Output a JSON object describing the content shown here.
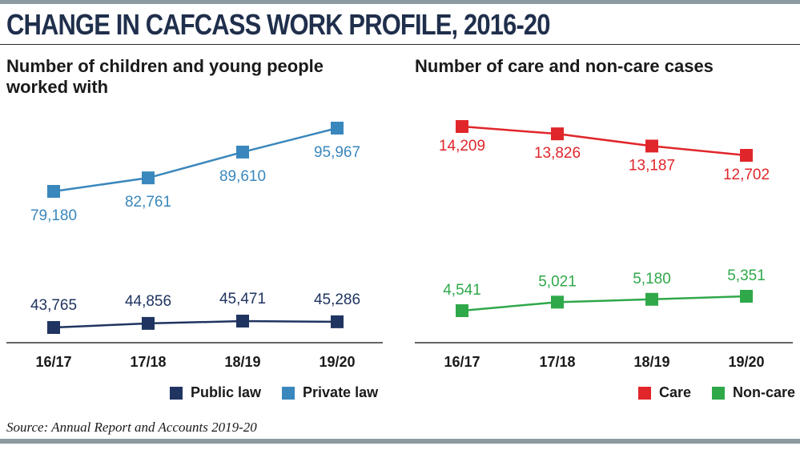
{
  "title": "CHANGE IN CAFCASS WORK PROFILE, 2016-20",
  "source": "Source: Annual Report and Accounts 2019-20",
  "colors": {
    "public": "#1f3460",
    "private": "#3a87bd",
    "care": "#e0262b",
    "noncare": "#2fa84a",
    "axis": "#333333"
  },
  "chart_data": [
    {
      "type": "line",
      "title": "Number of children and young people worked with",
      "categories": [
        "16/17",
        "17/18",
        "18/19",
        "19/20"
      ],
      "legend": "bottom-right",
      "grid": false,
      "series": [
        {
          "name": "Public law",
          "values": [
            43765,
            44856,
            45471,
            45286
          ],
          "labels": [
            "43,765",
            "44,856",
            "45,471",
            "45,286"
          ],
          "color": "#1f3460"
        },
        {
          "name": "Private law",
          "values": [
            79180,
            82761,
            89610,
            95967
          ],
          "labels": [
            "79,180",
            "82,761",
            "89,610",
            "95,967"
          ],
          "color": "#3a87bd"
        }
      ]
    },
    {
      "type": "line",
      "title": "Number of care and non-care cases",
      "categories": [
        "16/17",
        "17/18",
        "18/19",
        "19/20"
      ],
      "legend": "bottom-right",
      "grid": false,
      "series": [
        {
          "name": "Care",
          "values": [
            14209,
            13826,
            13187,
            12702
          ],
          "labels": [
            "14,209",
            "13,826",
            "13,187",
            "12,702"
          ],
          "color": "#e0262b"
        },
        {
          "name": "Non-care",
          "values": [
            4541,
            5021,
            5180,
            5351
          ],
          "labels": [
            "4,541",
            "5,021",
            "5,180",
            "5,351"
          ],
          "color": "#2fa84a"
        }
      ]
    }
  ]
}
